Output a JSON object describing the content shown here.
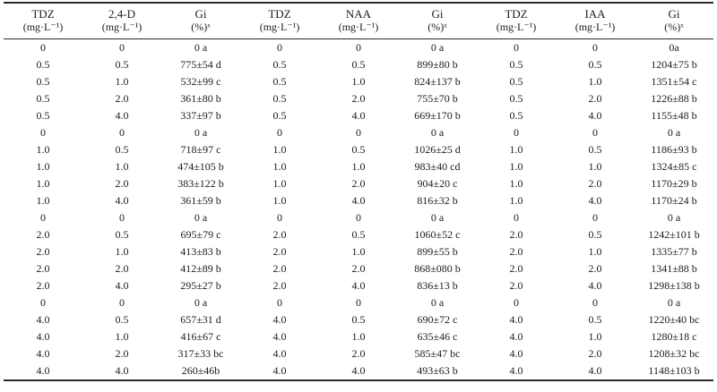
{
  "table": {
    "columns": [
      {
        "name": "TDZ",
        "unit": "(mg·L⁻¹)"
      },
      {
        "name": "2,4-D",
        "unit": "(mg·L⁻¹)"
      },
      {
        "name": "Gi",
        "unit": "(%)ˣ"
      },
      {
        "name": "TDZ",
        "unit": "(mg·L⁻¹)"
      },
      {
        "name": "NAA",
        "unit": "(mg·L⁻¹)"
      },
      {
        "name": "Gi",
        "unit": "(%)ˣ"
      },
      {
        "name": "TDZ",
        "unit": "(mg·L⁻¹)"
      },
      {
        "name": "IAA",
        "unit": "(mg·L⁻¹)"
      },
      {
        "name": "Gi",
        "unit": "(%)ˣ"
      }
    ],
    "rows": [
      [
        "0",
        "0",
        "0 a",
        "0",
        "0",
        "0 a",
        "0",
        "0",
        "0a"
      ],
      [
        "0.5",
        "0.5",
        "775±54 d",
        "0.5",
        "0.5",
        "899±80 b",
        "0.5",
        "0.5",
        "1204±75 b"
      ],
      [
        "0.5",
        "1.0",
        "532±99 c",
        "0.5",
        "1.0",
        "824±137 b",
        "0.5",
        "1.0",
        "1351±54 c"
      ],
      [
        "0.5",
        "2.0",
        "361±80 b",
        "0.5",
        "2.0",
        "755±70 b",
        "0.5",
        "2.0",
        "1226±88 b"
      ],
      [
        "0.5",
        "4.0",
        "337±97 b",
        "0.5",
        "4.0",
        "669±170 b",
        "0.5",
        "4.0",
        "1155±48 b"
      ],
      [
        "0",
        "0",
        "0 a",
        "0",
        "0",
        "0 a",
        "0",
        "0",
        "0 a"
      ],
      [
        "1.0",
        "0.5",
        "718±97 c",
        "1.0",
        "0.5",
        "1026±25 d",
        "1.0",
        "0.5",
        "1186±93 b"
      ],
      [
        "1.0",
        "1.0",
        "474±105 b",
        "1.0",
        "1.0",
        "983±40 cd",
        "1.0",
        "1.0",
        "1324±85 c"
      ],
      [
        "1.0",
        "2.0",
        "383±122 b",
        "1.0",
        "2.0",
        "904±20 c",
        "1.0",
        "2.0",
        "1170±29 b"
      ],
      [
        "1.0",
        "4.0",
        "361±59 b",
        "1.0",
        "4.0",
        "816±32 b",
        "1.0",
        "4.0",
        "1170±24 b"
      ],
      [
        "0",
        "0",
        "0 a",
        "0",
        "0",
        "0 a",
        "0",
        "0",
        "0 a"
      ],
      [
        "2.0",
        "0.5",
        "695±79 c",
        "2.0",
        "0.5",
        "1060±52 c",
        "2.0",
        "0.5",
        "1242±101 b"
      ],
      [
        "2.0",
        "1.0",
        "413±83 b",
        "2.0",
        "1.0",
        "899±55 b",
        "2.0",
        "1.0",
        "1335±77 b"
      ],
      [
        "2.0",
        "2.0",
        "412±89 b",
        "2.0",
        "2.0",
        "868±080 b",
        "2.0",
        "2.0",
        "1341±88 b"
      ],
      [
        "2.0",
        "4.0",
        "295±27 b",
        "2.0",
        "4.0",
        "836±13 b",
        "2.0",
        "4.0",
        "1298±138 b"
      ],
      [
        "0",
        "0",
        "0 a",
        "0",
        "0",
        "0 a",
        "0",
        "0",
        "0 a"
      ],
      [
        "4.0",
        "0.5",
        "657±31 d",
        "4.0",
        "0.5",
        "690±72 c",
        "4.0",
        "0.5",
        "1220±40 bc"
      ],
      [
        "4.0",
        "1.0",
        "416±67 c",
        "4.0",
        "1.0",
        "635±46 c",
        "4.0",
        "1.0",
        "1280±18 c"
      ],
      [
        "4.0",
        "2.0",
        "317±33 bc",
        "4.0",
        "2.0",
        "585±47 bc",
        "4.0",
        "2.0",
        "1208±32 bc"
      ],
      [
        "4.0",
        "4.0",
        "260±46b",
        "4.0",
        "4.0",
        "493±63 b",
        "4.0",
        "4.0",
        "1148±103 b"
      ]
    ]
  }
}
